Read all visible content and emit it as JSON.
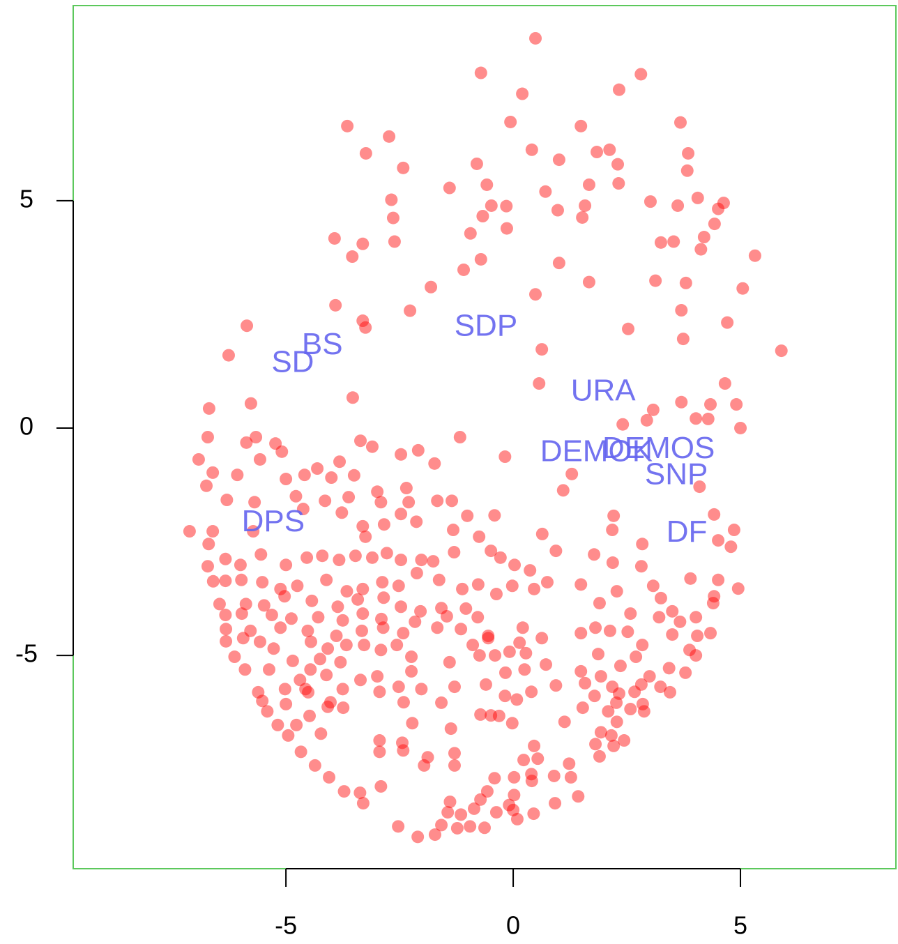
{
  "chart_data": {
    "type": "scatter",
    "color": "#ff0000",
    "xlim": [
      -9.68,
      8.42
    ],
    "ylim": [
      -9.69,
      9.29
    ],
    "xticks": [
      -5,
      0,
      5
    ],
    "yticks": [
      -5,
      0,
      5
    ],
    "x": [
      0.49,
      -0.71,
      2.81,
      0.2,
      2.33,
      -3.65,
      -2.73,
      -0.06,
      1.49,
      3.68,
      -3.24,
      -2.42,
      -0.8,
      0.41,
      1.01,
      1.84,
      2.12,
      2.3,
      3.85,
      3.83,
      -1.4,
      -0.58,
      0.71,
      1.67,
      2.32,
      -2.68,
      -0.48,
      -0.15,
      0.98,
      1.58,
      3.02,
      3.62,
      4.06,
      4.63,
      -2.64,
      -0.67,
      -0.14,
      1.52,
      4.51,
      4.43,
      -3.93,
      -3.31,
      -2.61,
      -0.94,
      3.25,
      3.53,
      4.2,
      4.13,
      -3.54,
      -0.71,
      -1.09,
      1.01,
      5.32,
      3.13,
      3.8,
      1.67,
      -1.81,
      0.49,
      5.05,
      -3.91,
      -2.27,
      3.7,
      -3.31,
      -3.25,
      -5.86,
      4.71,
      2.53,
      3.74,
      -6.26,
      0.63,
      5.9,
      0.57,
      4.66,
      -3.53,
      -6.69,
      -5.77,
      3.08,
      3.7,
      4.34,
      4.91,
      4.02,
      4.29,
      2.41,
      2.94,
      5.0,
      -6.72,
      -1.17,
      -5.66,
      -5.87,
      -5.23,
      -3.36,
      -3.1,
      -6.92,
      -5.09,
      -2.09,
      -0.18,
      -6.61,
      -6.07,
      -5.57,
      -4.31,
      -3.82,
      -2.47,
      -1.73,
      1.29,
      -6.75,
      -5.0,
      -4.59,
      -4.0,
      -3.5,
      -2.99,
      -2.35,
      1.1,
      4.1,
      -6.3,
      -5.69,
      -4.78,
      -4.14,
      -3.62,
      -2.91,
      -2.3,
      -1.67,
      -1.35,
      -4.62,
      -3.77,
      -2.47,
      -1.01,
      -0.41,
      2.21,
      4.42,
      -7.12,
      -6.61,
      -5.72,
      -3.31,
      -2.84,
      -2.13,
      -1.32,
      0.64,
      2.18,
      4.86,
      -6.7,
      -3.25,
      -0.75,
      2.84,
      4.51,
      4.79,
      -6.72,
      -6.33,
      -6.0,
      -5.55,
      -5.0,
      -4.54,
      -4.2,
      -3.83,
      -3.47,
      -3.1,
      -2.78,
      -2.47,
      -2.02,
      -1.76,
      -1.3,
      -0.49,
      -0.28,
      0.03,
      0.37,
      0.94,
      1.78,
      2.19,
      2.82,
      3.9,
      4.51,
      4.95,
      -6.6,
      -6.33,
      -5.98,
      -5.52,
      -5.12,
      -4.75,
      -4.11,
      -3.66,
      -3.31,
      -2.88,
      -2.52,
      -2.12,
      -1.63,
      -1.12,
      -0.77,
      -0.37,
      -0.02,
      0.46,
      0.75,
      1.49,
      2.28,
      3.08,
      4.42,
      -6.46,
      -5.88,
      -5.48,
      -5.03,
      -4.43,
      -3.86,
      -3.42,
      -2.85,
      -2.47,
      -2.04,
      -1.58,
      -1.04,
      1.9,
      2.58,
      3.25,
      3.5,
      4.4,
      -6.33,
      -5.97,
      -5.31,
      -4.88,
      -4.29,
      -3.75,
      -3.31,
      -2.9,
      -2.16,
      -1.46,
      -0.78,
      3.21,
      3.67,
      4.02,
      -6.32,
      -5.78,
      -5.12,
      -4.52,
      -3.89,
      -3.33,
      -2.86,
      -2.42,
      -1.67,
      -1.15,
      -0.55,
      0.21,
      0.63,
      1.49,
      1.81,
      2.13,
      2.52,
      3.5,
      4.05,
      4.34,
      -6.32,
      -5.94,
      -5.57,
      -5.27,
      -4.45,
      -4.08,
      -3.67,
      -3.28,
      -2.56,
      -0.89,
      -0.55,
      -0.08,
      0.14,
      2.84,
      3.88,
      -6.13,
      -4.85,
      -4.25,
      -3.8,
      -2.91,
      -2.24,
      -1.4,
      -0.74,
      -0.4,
      0.28,
      0.72,
      1.87,
      2.36,
      2.7,
      4.02,
      -5.9,
      -5.37,
      -4.46,
      -4.11,
      -3.36,
      -2.99,
      -2.24,
      -0.17,
      0.25,
      1.49,
      1.93,
      3.0,
      3.43,
      3.79,
      -4.69,
      -5.02,
      -4.57,
      -3.75,
      -2.52,
      -2.02,
      -1.29,
      -0.6,
      0.94,
      1.58,
      2.18,
      2.82,
      3.24,
      -5.61,
      -4.51,
      -2.94,
      -0.18,
      0.4,
      1.79,
      2.33,
      2.67,
      3.45,
      -5.52,
      -5.0,
      -4.02,
      -2.41,
      -1.58,
      0.08,
      2.27,
      2.85,
      -5.41,
      -4.08,
      -3.74,
      2.09,
      2.58,
      -4.48,
      -0.72,
      -0.49,
      -0.31,
      1.53,
      2.88,
      -5.18,
      -4.77,
      -2.22,
      -0.02,
      1.13,
      2.28,
      -4.95,
      -4.23,
      -1.37,
      1.93,
      2.16,
      2.44,
      -2.94,
      -2.44,
      0.46,
      1.81,
      2.21,
      -4.67,
      -2.94,
      -2.42,
      -1.29,
      1.9,
      -1.88,
      0.23,
      0.54,
      -4.36,
      -1.96,
      -1.29,
      1.23,
      0.4,
      0.9,
      -4.05,
      -0.41,
      0.02,
      1.27,
      -2.91,
      0.41,
      -3.72,
      -3.37,
      -0.57,
      0.02,
      -1.39,
      -0.72,
      -3.3,
      -0.09,
      0.92,
      1.43,
      -0.86,
      -0.37,
      0.0,
      0.45,
      -1.44,
      -1.15,
      0.09,
      -1.58,
      -1.23,
      -0.95,
      -0.63,
      -2.53,
      -1.72,
      -2.1
    ],
    "values": [
      8.57,
      7.81,
      7.78,
      7.35,
      7.44,
      6.64,
      6.41,
      6.73,
      6.64,
      6.72,
      6.04,
      5.72,
      5.81,
      6.12,
      5.9,
      6.07,
      6.12,
      5.8,
      6.04,
      5.66,
      5.28,
      5.35,
      5.2,
      5.35,
      5.38,
      5.02,
      4.89,
      4.88,
      4.79,
      4.89,
      4.98,
      4.89,
      5.06,
      4.95,
      4.62,
      4.66,
      4.39,
      4.63,
      4.82,
      4.49,
      4.17,
      4.05,
      4.1,
      4.28,
      4.08,
      4.1,
      4.2,
      3.93,
      3.77,
      3.71,
      3.48,
      3.63,
      3.79,
      3.24,
      3.19,
      3.21,
      3.1,
      2.94,
      3.07,
      2.7,
      2.58,
      2.59,
      2.36,
      2.21,
      2.25,
      2.32,
      2.18,
      1.96,
      1.6,
      1.73,
      1.7,
      0.98,
      0.98,
      0.67,
      0.43,
      0.54,
      0.4,
      0.57,
      0.52,
      0.52,
      0.21,
      0.2,
      0.08,
      0.17,
      0.0,
      -0.2,
      -0.2,
      -0.2,
      -0.32,
      -0.34,
      -0.28,
      -0.41,
      -0.69,
      -0.52,
      -0.49,
      -0.63,
      -0.98,
      -1.03,
      -0.69,
      -0.89,
      -0.74,
      -0.58,
      -0.78,
      -1.01,
      -1.27,
      -1.12,
      -1.03,
      -1.09,
      -1.04,
      -1.4,
      -1.32,
      -1.37,
      -1.29,
      -1.58,
      -1.63,
      -1.5,
      -1.6,
      -1.52,
      -1.63,
      -1.63,
      -1.6,
      -1.6,
      -1.78,
      -1.86,
      -1.89,
      -1.93,
      -1.92,
      -1.93,
      -1.9,
      -2.27,
      -2.27,
      -2.27,
      -2.16,
      -2.12,
      -2.06,
      -2.24,
      -2.33,
      -2.24,
      -2.24,
      -2.55,
      -2.39,
      -2.39,
      -2.55,
      -2.47,
      -2.61,
      -3.04,
      -2.88,
      -3.01,
      -2.78,
      -3.01,
      -2.85,
      -2.81,
      -2.9,
      -2.81,
      -2.85,
      -2.75,
      -2.9,
      -2.9,
      -2.93,
      -2.73,
      -2.7,
      -2.85,
      -3.01,
      -3.13,
      -2.7,
      -2.78,
      -2.96,
      -3.04,
      -3.31,
      -3.34,
      -3.53,
      -3.37,
      -3.36,
      -3.34,
      -3.39,
      -3.54,
      -3.47,
      -3.34,
      -3.59,
      -3.54,
      -3.39,
      -3.47,
      -3.19,
      -3.34,
      -3.54,
      -3.44,
      -3.65,
      -3.47,
      -3.54,
      -3.39,
      -3.44,
      -3.59,
      -3.47,
      -3.7,
      -3.87,
      -3.87,
      -3.9,
      -3.7,
      -3.8,
      -3.93,
      -3.77,
      -3.73,
      -3.93,
      -4.03,
      -3.96,
      -3.97,
      -3.85,
      -4.08,
      -3.74,
      -4.03,
      -3.85,
      -4.11,
      -4.08,
      -4.11,
      -4.19,
      -4.16,
      -4.23,
      -4.08,
      -4.2,
      -4.26,
      -4.14,
      -4.16,
      -4.16,
      -4.26,
      -4.16,
      -4.42,
      -4.46,
      -4.39,
      -4.46,
      -4.57,
      -4.46,
      -4.39,
      -4.51,
      -4.39,
      -4.42,
      -4.57,
      -4.39,
      -4.62,
      -4.51,
      -4.39,
      -4.46,
      -4.48,
      -4.54,
      -4.57,
      -4.51,
      -4.69,
      -4.62,
      -4.7,
      -4.85,
      -4.7,
      -4.85,
      -4.77,
      -4.77,
      -4.77,
      -4.77,
      -4.62,
      -4.92,
      -4.72,
      -4.77,
      -4.88,
      -5.03,
      -5.12,
      -5.08,
      -5.15,
      -4.88,
      -5.03,
      -5.15,
      -5.0,
      -5.0,
      -4.95,
      -5.2,
      -4.97,
      -5.23,
      -5.03,
      -5.0,
      -5.31,
      -5.31,
      -5.31,
      -5.43,
      -5.54,
      -5.46,
      -5.35,
      -5.38,
      -5.31,
      -5.35,
      -5.46,
      -5.46,
      -5.28,
      -5.38,
      -5.54,
      -5.74,
      -5.74,
      -5.74,
      -5.69,
      -5.74,
      -5.69,
      -5.64,
      -5.66,
      -5.61,
      -5.69,
      -5.64,
      -5.69,
      -5.81,
      -5.81,
      -5.8,
      -5.89,
      -5.8,
      -5.89,
      -5.84,
      -5.8,
      -5.81,
      -6.0,
      -6.07,
      -6.03,
      -6.03,
      -6.04,
      -5.97,
      -6.04,
      -6.07,
      -6.23,
      -6.13,
      -6.15,
      -6.23,
      -6.18,
      -6.33,
      -6.3,
      -6.32,
      -6.33,
      -6.15,
      -6.23,
      -6.53,
      -6.53,
      -6.49,
      -6.49,
      -6.46,
      -6.46,
      -6.76,
      -6.72,
      -6.61,
      -6.69,
      -6.76,
      -6.87,
      -6.87,
      -6.92,
      -6.99,
      -6.95,
      -6.99,
      -7.12,
      -7.12,
      -7.09,
      -7.15,
      -7.22,
      -7.24,
      -7.3,
      -7.27,
      -7.42,
      -7.42,
      -7.42,
      -7.38,
      -7.61,
      -7.65,
      -7.68,
      -7.7,
      -7.68,
      -7.68,
      -7.88,
      -7.76,
      -7.99,
      -8.02,
      -7.99,
      -8.07,
      -8.22,
      -8.17,
      -8.25,
      -8.29,
      -8.25,
      -8.1,
      -8.37,
      -8.45,
      -8.4,
      -8.48,
      -8.45,
      -8.5,
      -8.6,
      -8.73,
      -8.8,
      -8.76,
      -8.79,
      -8.76,
      -8.94,
      -8.99
    ],
    "annotations": [
      {
        "text": "SDP",
        "x": -0.6,
        "y": 2.21
      },
      {
        "text": "BS",
        "x": -4.2,
        "y": 1.8
      },
      {
        "text": "SD",
        "x": -4.85,
        "y": 1.41
      },
      {
        "text": "URA",
        "x": 1.98,
        "y": 0.78
      },
      {
        "text": "DEMOS",
        "x": 3.2,
        "y": -0.48
      },
      {
        "text": "DEMOK",
        "x": 1.83,
        "y": -0.55
      },
      {
        "text": "SNP",
        "x": 3.59,
        "y": -1.06
      },
      {
        "text": "DF",
        "x": 3.82,
        "y": -2.32
      },
      {
        "text": "DPS",
        "x": -5.28,
        "y": -2.09
      }
    ]
  }
}
